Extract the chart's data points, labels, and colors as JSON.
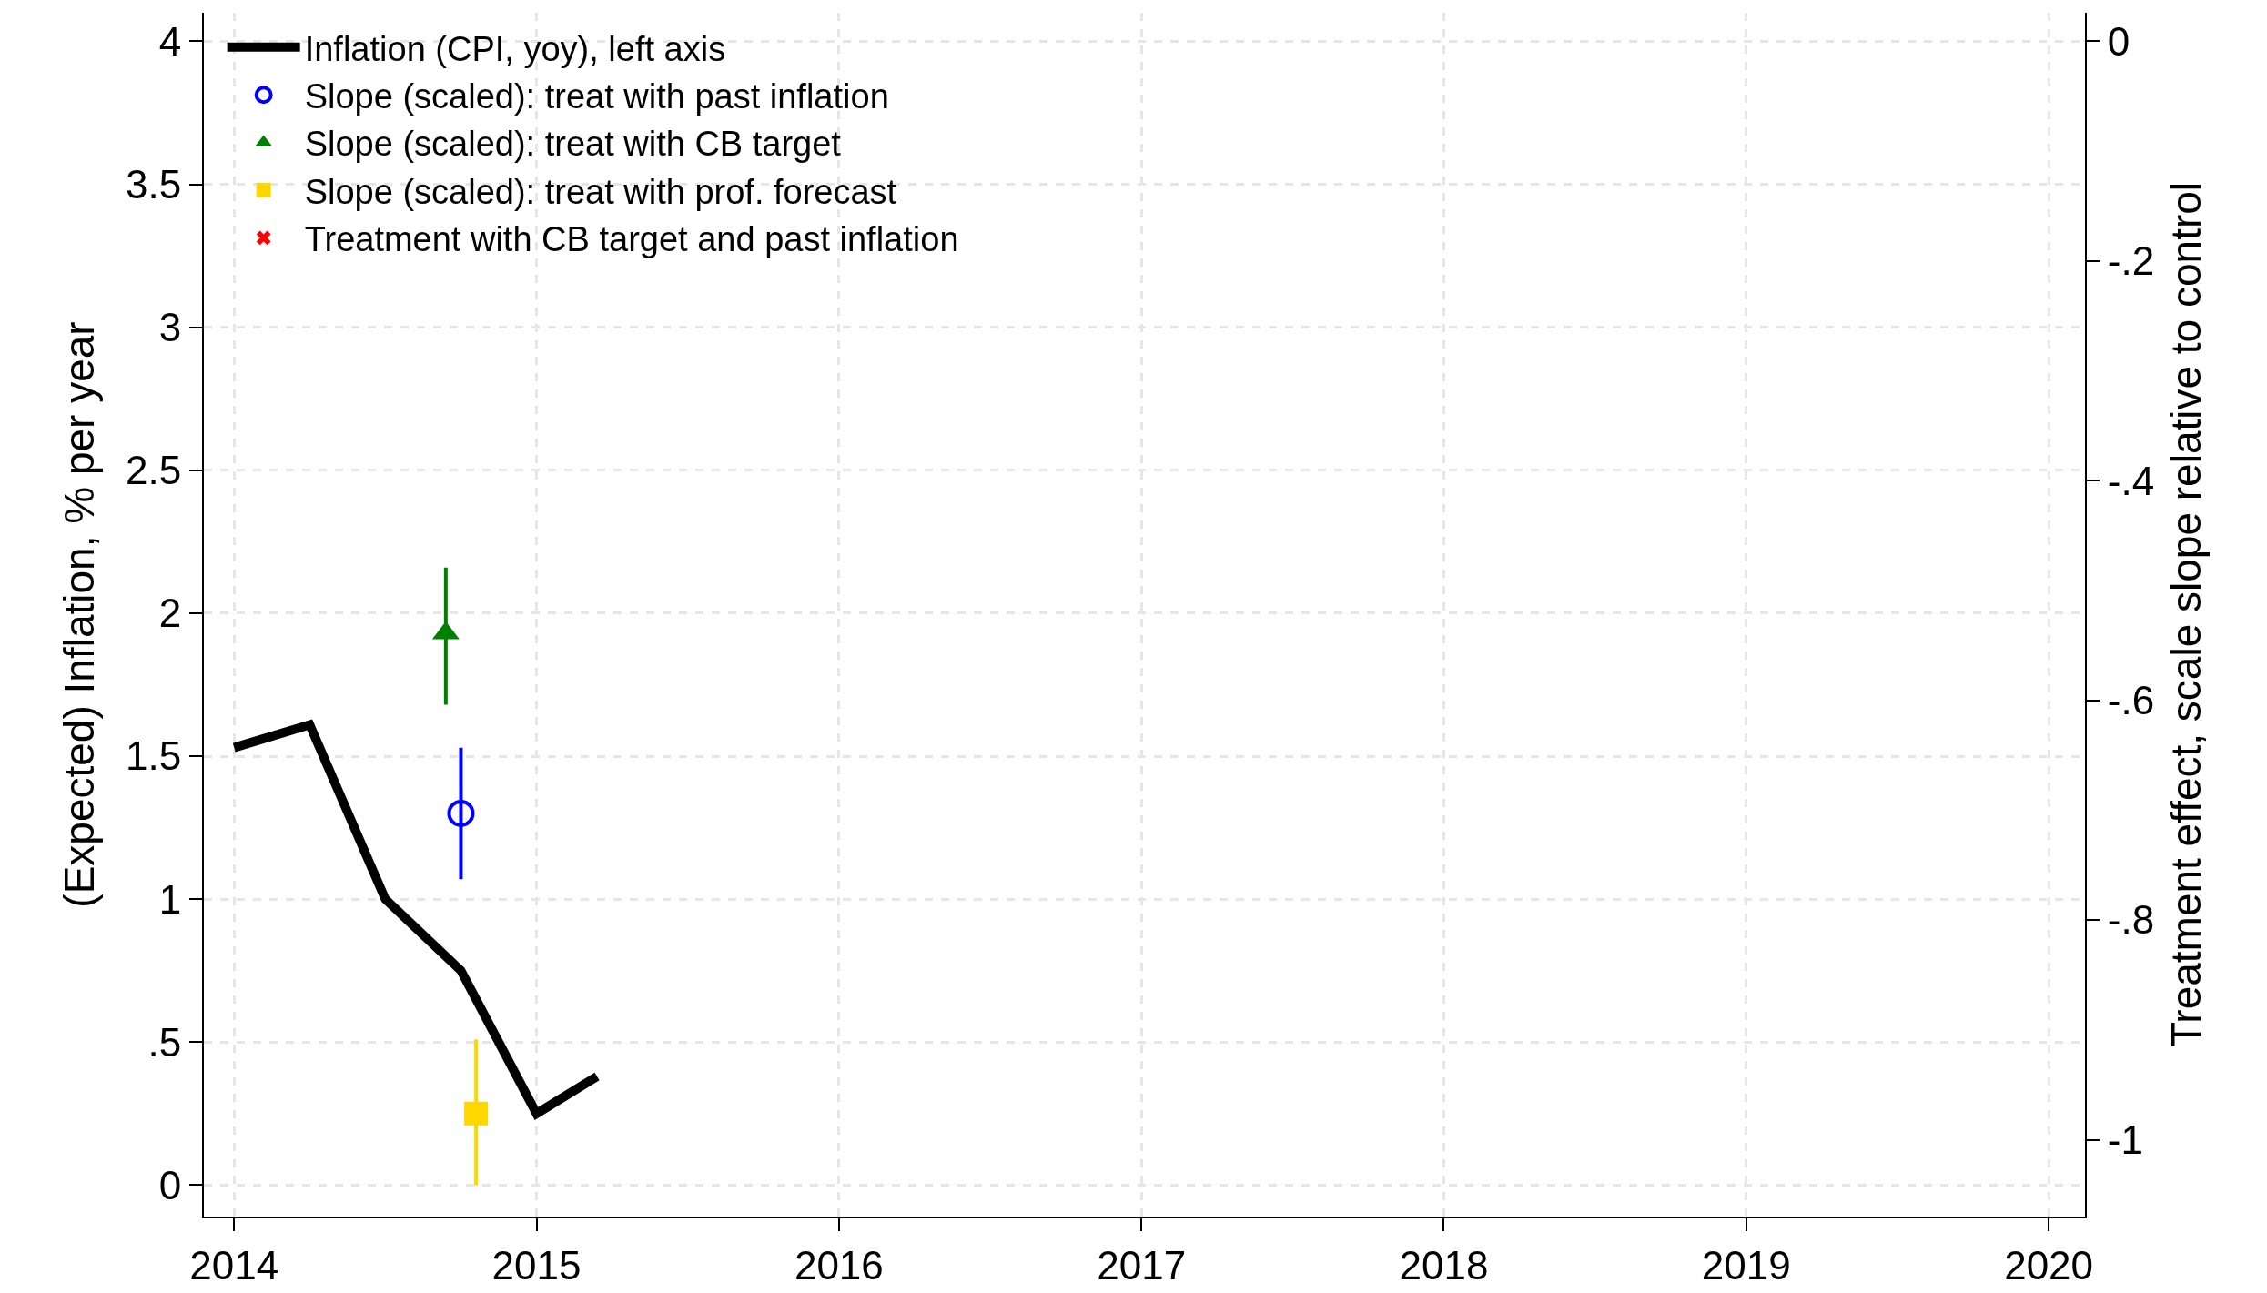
{
  "chart_data": {
    "type": "line",
    "ylabel": "(Expected) Inflation, % per year",
    "y2label": "Treatment effect, scale slope relative to control",
    "xlim": [
      2013.9,
      2020.12
    ],
    "xticks": [
      2014,
      2015,
      2016,
      2017,
      2018,
      2019,
      2020
    ],
    "ylim": [
      -0.11,
      4.1
    ],
    "yticks": [
      0,
      {
        "value": 0.5,
        "label": ".5"
      },
      1,
      1.5,
      2,
      2.5,
      3,
      3.5,
      4
    ],
    "y2lim": [
      -1.07,
      0.026
    ],
    "y2ticks": [
      0,
      {
        "value": -0.2,
        "label": "-.2"
      },
      {
        "value": -0.4,
        "label": "-.4"
      },
      {
        "value": -0.6,
        "label": "-.6"
      },
      {
        "value": -0.8,
        "label": "-.8"
      },
      -1
    ],
    "grid": true,
    "legend": "top left",
    "series": [
      {
        "name": "Inflation (CPI, yoy), left axis",
        "color": "#000000",
        "marker": "none",
        "line_style": "solid",
        "x": [
          2014,
          2014.25,
          2014.5,
          2014.75,
          2015,
          2015.2
        ],
        "values": [
          1.53,
          1.61,
          1.0,
          0.75,
          0.25,
          0.38
        ]
      },
      {
        "name": "Slope (scaled): treat with past inflation",
        "type": "scatter",
        "color": "#0000ff",
        "marker": "circle",
        "x": [
          2014.75
        ],
        "values": [
          1.3
        ],
        "errors": [
          [
            1.07,
            1.53
          ]
        ]
      },
      {
        "name": "Slope (scaled): treat with CB target",
        "type": "scatter",
        "color": "#008000",
        "marker": "triangle",
        "x": [
          2014.7
        ],
        "values": [
          1.93
        ],
        "errors": [
          [
            1.68,
            2.16
          ]
        ]
      },
      {
        "name": "Slope (scaled): treat with prof. forecast",
        "type": "scatter",
        "color": "#ffd700",
        "marker": "square",
        "x": [
          2014.8
        ],
        "values": [
          0.25
        ],
        "errors": [
          [
            0,
            0.51
          ]
        ]
      },
      {
        "name": "Treatment with CB target and past inflation",
        "type": "scatter",
        "color": "#ff0000",
        "marker": "cross"
      }
    ]
  }
}
